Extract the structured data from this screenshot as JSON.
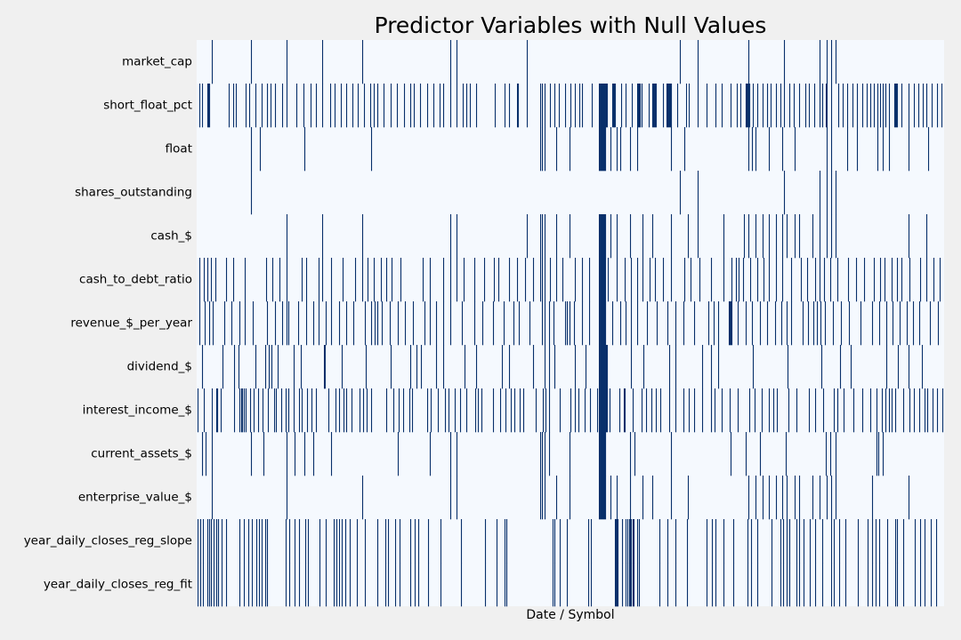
{
  "chart_data": {
    "type": "heatmap",
    "title": "Predictor Variables with Null Values",
    "xlabel": "Date / Symbol",
    "ylabel": "",
    "x_tick_labels": [],
    "colorbar": false,
    "colors": {
      "not_null": "#f5f9fe",
      "null": "#08306b",
      "background": "#f0f0f0"
    },
    "n_columns": 840,
    "rows": [
      {
        "name": "market_cap",
        "null_columns": [
          17,
          61,
          101,
          141,
          186,
          285,
          292,
          371,
          543,
          563,
          620,
          660,
          700,
          708,
          713,
          718
        ]
      },
      {
        "name": "short_float_pct",
        "null_columns": [
          3,
          6,
          12,
          13,
          14,
          36,
          41,
          44,
          55,
          59,
          66,
          73,
          79,
          83,
          88,
          96,
          101,
          112,
          120,
          128,
          134,
          141,
          150,
          155,
          162,
          168,
          175,
          181,
          188,
          195,
          199,
          203,
          210,
          218,
          225,
          233,
          240,
          244,
          251,
          259,
          266,
          273,
          277,
          285,
          292,
          299,
          303,
          307,
          314,
          335,
          346,
          351,
          360,
          361,
          371,
          386,
          388,
          391,
          397,
          402,
          407,
          414,
          420,
          425,
          430,
          433,
          444,
          452,
          453,
          454,
          455,
          456,
          457,
          458,
          459,
          460,
          461,
          467,
          468,
          469,
          470,
          477,
          482,
          489,
          495,
          496,
          497,
          498,
          500,
          508,
          512,
          513,
          514,
          515,
          516,
          524,
          528,
          529,
          530,
          531,
          532,
          533,
          540,
          550,
          553,
          563,
          573,
          583,
          590,
          600,
          607,
          611,
          617,
          618,
          619,
          620,
          621,
          625,
          630,
          636,
          641,
          645,
          651,
          656,
          660,
          666,
          671,
          677,
          684,
          688,
          694,
          700,
          703,
          707,
          708,
          713,
          721,
          726,
          731,
          737,
          742,
          748,
          753,
          757,
          761,
          765,
          768,
          771,
          774,
          778,
          784,
          785,
          786,
          787,
          792,
          800,
          806,
          811,
          816,
          820,
          826,
          832,
          837
        ]
      },
      {
        "name": "float",
        "null_columns": [
          61,
          71,
          121,
          196,
          386,
          388,
          391,
          404,
          419,
          452,
          453,
          454,
          455,
          456,
          457,
          458,
          459,
          465,
          472,
          476,
          487,
          495,
          533,
          548,
          620,
          624,
          628,
          643,
          658,
          672,
          708,
          713,
          731,
          742,
          765,
          771,
          778,
          800,
          822
        ]
      },
      {
        "name": "shares_outstanding",
        "null_columns": [
          61,
          543,
          563,
          660,
          700,
          708,
          713,
          718
        ]
      },
      {
        "name": "cash_$",
        "null_columns": [
          101,
          141,
          186,
          285,
          292,
          371,
          386,
          388,
          391,
          404,
          419,
          452,
          453,
          454,
          455,
          456,
          457,
          458,
          459,
          465,
          472,
          487,
          501,
          512,
          533,
          552,
          563,
          592,
          615,
          620,
          628,
          636,
          643,
          651,
          658,
          663,
          672,
          677,
          692,
          700,
          708,
          713,
          718,
          800,
          820
        ]
      },
      {
        "name": "cash_to_debt_ratio",
        "null_columns": [
          3,
          8,
          12,
          16,
          21,
          33,
          41,
          54,
          78,
          85,
          93,
          101,
          118,
          123,
          137,
          141,
          151,
          164,
          178,
          186,
          192,
          199,
          207,
          213,
          219,
          229,
          254,
          262,
          277,
          285,
          292,
          300,
          312,
          323,
          334,
          339,
          351,
          360,
          369,
          378,
          386,
          388,
          391,
          397,
          404,
          411,
          425,
          433,
          441,
          452,
          453,
          454,
          455,
          456,
          457,
          458,
          459,
          462,
          472,
          481,
          488,
          495,
          501,
          509,
          515,
          524,
          533,
          548,
          555,
          565,
          578,
          592,
          601,
          606,
          609,
          614,
          622,
          630,
          637,
          643,
          651,
          658,
          668,
          679,
          686,
          695,
          700,
          705,
          712,
          720,
          732,
          741,
          750,
          761,
          768,
          773,
          781,
          787,
          792,
          801,
          813,
          820,
          828,
          835
        ]
      },
      {
        "name": "revenue_$_per_year",
        "null_columns": [
          3,
          9,
          14,
          18,
          31,
          39,
          48,
          54,
          63,
          79,
          88,
          96,
          101,
          103,
          114,
          123,
          131,
          137,
          145,
          151,
          160,
          168,
          176,
          189,
          196,
          200,
          203,
          208,
          217,
          226,
          234,
          243,
          256,
          262,
          269,
          277,
          285,
          298,
          312,
          321,
          333,
          345,
          356,
          362,
          374,
          388,
          391,
          396,
          401,
          414,
          416,
          419,
          424,
          433,
          441,
          452,
          453,
          454,
          455,
          456,
          457,
          458,
          459,
          467,
          476,
          482,
          488,
          495,
          506,
          517,
          529,
          538,
          547,
          559,
          575,
          581,
          586,
          598,
          599,
          600,
          601,
          608,
          617,
          624,
          633,
          641,
          650,
          657,
          663,
          668,
          681,
          687,
          693,
          697,
          701,
          706,
          715,
          724,
          733,
          746,
          759,
          767,
          775,
          782,
          790,
          798,
          805,
          812,
          824,
          833
        ]
      },
      {
        "name": "dividend_$",
        "null_columns": [
          6,
          29,
          42,
          47,
          66,
          77,
          81,
          84,
          91,
          109,
          117,
          143,
          144,
          163,
          190,
          218,
          240,
          247,
          252,
          269,
          277,
          301,
          314,
          343,
          351,
          378,
          391,
          396,
          402,
          425,
          437,
          452,
          453,
          454,
          455,
          456,
          457,
          458,
          459,
          460,
          461,
          488,
          502,
          531,
          538,
          568,
          578,
          586,
          625,
          664,
          702,
          723,
          735,
          775,
          788,
          800,
          815
        ]
      },
      {
        "name": "interest_income_$",
        "null_columns": [
          1,
          8,
          17,
          22,
          23,
          27,
          42,
          48,
          50,
          51,
          53,
          55,
          60,
          64,
          69,
          74,
          80,
          87,
          89,
          95,
          100,
          103,
          109,
          115,
          118,
          124,
          129,
          134,
          148,
          156,
          160,
          165,
          168,
          174,
          183,
          187,
          191,
          196,
          213,
          221,
          227,
          232,
          239,
          242,
          259,
          263,
          271,
          279,
          283,
          290,
          296,
          303,
          313,
          316,
          320,
          333,
          341,
          347,
          353,
          357,
          363,
          367,
          381,
          389,
          392,
          396,
          408,
          420,
          425,
          429,
          436,
          442,
          450,
          452,
          453,
          454,
          455,
          456,
          457,
          458,
          459,
          460,
          461,
          464,
          475,
          480,
          481,
          490,
          500,
          505,
          511,
          516,
          521,
          531,
          538,
          547,
          553,
          559,
          568,
          578,
          582,
          590,
          599,
          608,
          621,
          627,
          635,
          643,
          648,
          652,
          665,
          674,
          688,
          695,
          704,
          716,
          720,
          727,
          738,
          748,
          757,
          764,
          770,
          774,
          778,
          781,
          785,
          794,
          801,
          806,
          812,
          818,
          821,
          827,
          832,
          838
        ]
      },
      {
        "name": "current_assets_$",
        "null_columns": [
          6,
          10,
          17,
          61,
          75,
          101,
          110,
          121,
          131,
          151,
          226,
          262,
          285,
          292,
          386,
          388,
          391,
          396,
          419,
          452,
          453,
          454,
          455,
          456,
          457,
          458,
          459,
          487,
          492,
          533,
          600,
          617,
          633,
          662,
          707,
          712,
          718,
          764,
          766,
          771
        ]
      },
      {
        "name": "enterprise_value_$",
        "null_columns": [
          17,
          101,
          186,
          285,
          292,
          386,
          388,
          391,
          404,
          419,
          452,
          453,
          454,
          455,
          456,
          457,
          458,
          459,
          465,
          472,
          487,
          501,
          512,
          533,
          552,
          620,
          628,
          636,
          643,
          651,
          658,
          663,
          672,
          677,
          692,
          700,
          708,
          713,
          718,
          759,
          800
        ]
      },
      {
        "name": "year_daily_closes_reg_slope",
        "null_columns": [
          1,
          4,
          7,
          12,
          14,
          16,
          19,
          22,
          24,
          28,
          33,
          48,
          53,
          58,
          62,
          67,
          70,
          73,
          77,
          79,
          100,
          104,
          110,
          115,
          122,
          125,
          138,
          145,
          154,
          157,
          160,
          163,
          167,
          172,
          180,
          189,
          203,
          212,
          215,
          223,
          228,
          240,
          245,
          249,
          260,
          274,
          297,
          324,
          337,
          346,
          348,
          400,
          402,
          408,
          416,
          440,
          443,
          470,
          471,
          472,
          473,
          478,
          482,
          484,
          486,
          487,
          488,
          490,
          491,
          495,
          497,
          520,
          529,
          538,
          551,
          573,
          579,
          583,
          592,
          603,
          619,
          623,
          630,
          646,
          656,
          659,
          663,
          666,
          674,
          677,
          682,
          689,
          695,
          703,
          713,
          716,
          722,
          729,
          743,
          754,
          759,
          763,
          767,
          776,
          785,
          787,
          794,
          807,
          813,
          818,
          825,
          831
        ]
      },
      {
        "name": "year_daily_closes_reg_fit",
        "null_columns": [
          1,
          4,
          7,
          12,
          14,
          16,
          19,
          22,
          24,
          28,
          33,
          48,
          53,
          58,
          62,
          67,
          70,
          73,
          77,
          79,
          100,
          104,
          110,
          115,
          122,
          125,
          138,
          145,
          154,
          157,
          160,
          163,
          167,
          172,
          180,
          189,
          203,
          212,
          215,
          223,
          228,
          240,
          245,
          249,
          260,
          274,
          297,
          324,
          337,
          346,
          348,
          400,
          402,
          408,
          416,
          440,
          443,
          470,
          471,
          472,
          473,
          478,
          482,
          484,
          486,
          487,
          488,
          490,
          491,
          495,
          497,
          520,
          529,
          538,
          551,
          573,
          579,
          583,
          592,
          603,
          619,
          623,
          630,
          646,
          656,
          659,
          663,
          666,
          674,
          677,
          682,
          689,
          695,
          703,
          713,
          716,
          722,
          729,
          743,
          754,
          759,
          763,
          767,
          776,
          785,
          787,
          794,
          807,
          813,
          818,
          825,
          831
        ]
      }
    ]
  }
}
